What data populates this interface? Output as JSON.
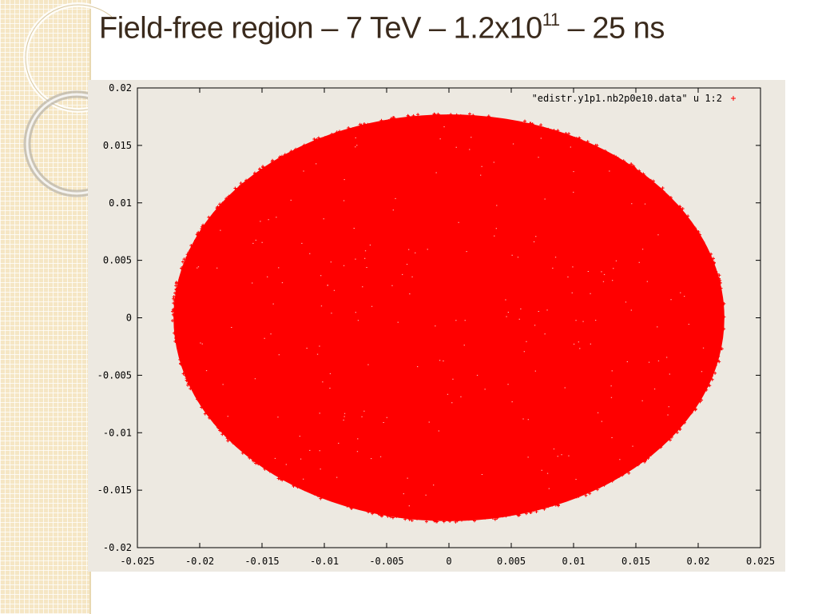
{
  "slide": {
    "title_main": "Field-free region – 7 TeV – 1.2x10",
    "title_exp": "11",
    "title_tail": " – 25 ns"
  },
  "chart_data": {
    "type": "scatter",
    "title": "",
    "xlabel": "",
    "ylabel": "",
    "xlim": [
      -0.025,
      0.025
    ],
    "ylim": [
      -0.02,
      0.02
    ],
    "xticks": [
      "-0.025",
      "-0.02",
      "-0.015",
      "-0.01",
      "-0.005",
      "0",
      "0.005",
      "0.01",
      "0.015",
      "0.02",
      "0.025"
    ],
    "yticks": [
      "-0.02",
      "-0.015",
      "-0.01",
      "-0.005",
      "0",
      "0.005",
      "0.01",
      "0.015",
      "0.02"
    ],
    "grid": false,
    "legend_position": "top-right",
    "series": [
      {
        "name": "\"edistr.y1p1.nb2p0e10.data\" u 1:2",
        "marker": "+",
        "color": "#ff0000",
        "distribution": "uniform-elliptical",
        "center": [
          0,
          0
        ],
        "x_semi_axis": 0.0222,
        "y_semi_axis": 0.0178
      }
    ]
  }
}
